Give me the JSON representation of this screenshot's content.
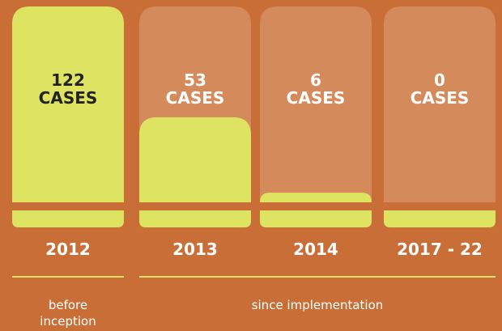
{
  "chart_data": {
    "type": "bar",
    "categories": [
      "2012",
      "2013",
      "2014",
      "2017 - 22"
    ],
    "values": [
      122,
      53,
      6,
      0
    ],
    "value_labels": [
      "122\nCASES",
      "53\nCASES",
      "6\nCASES",
      "0\nCASES"
    ],
    "color": "#dfe362",
    "annotations": [
      {
        "label": "before\ninception",
        "from": 0,
        "to": 0
      },
      {
        "label": "since implementation",
        "from": 1,
        "to": 3
      }
    ]
  }
}
